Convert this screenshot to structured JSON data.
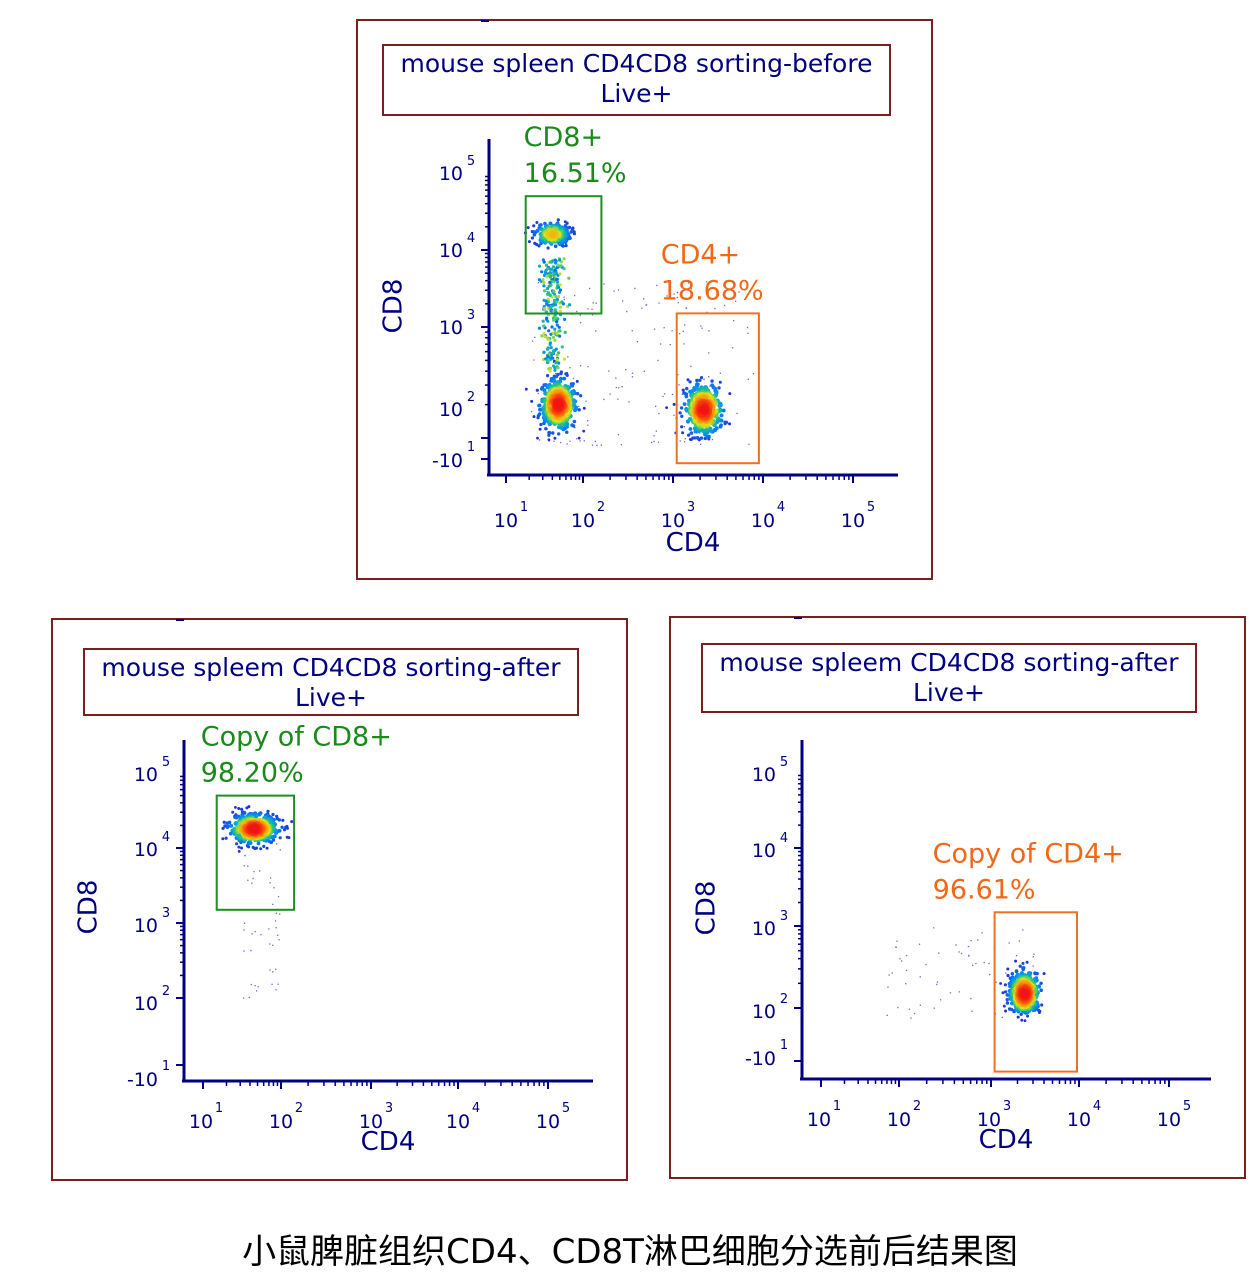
{
  "caption": "小鼠脾脏组织CD4、CD8T淋巴细胞分选前后结果图",
  "colors": {
    "frame": "#7a1f1f",
    "axis": "#000080",
    "cd8_gate": "#228b22",
    "cd8_text": "#1a8a1a",
    "cd4_gate": "#f07020",
    "cd4_text": "#f06818"
  },
  "tick_labels": [
    "-10",
    "10",
    "10",
    "10",
    "10",
    "10"
  ],
  "tick_exponents": [
    "1",
    "1",
    "2",
    "3",
    "4",
    "5"
  ],
  "x_tick_exponents": [
    "1",
    "2",
    "3",
    "4",
    "5"
  ],
  "chart_data": [
    {
      "type": "scatter",
      "title": "mouse spleen CD4CD8 sorting-before",
      "subtitle": "Live+",
      "xlabel": "CD4",
      "ylabel": "CD8",
      "x_scale": "biexponential",
      "y_scale": "biexponential",
      "x_ticks": [
        10,
        100,
        1000,
        10000,
        100000
      ],
      "y_ticks": [
        -10,
        10,
        100,
        1000,
        10000,
        100000
      ],
      "populations": [
        {
          "center": [
            48,
            20
          ],
          "density": "high"
        },
        {
          "center": [
            40,
            1600
          ],
          "density": "medium"
        },
        {
          "center": [
            2200,
            18
          ],
          "density": "high"
        }
      ],
      "gates": [
        {
          "name": "CD8+",
          "percent": "16.51%",
          "x_range": [
            18,
            160
          ],
          "y_range": [
            150,
            5000
          ]
        },
        {
          "name": "CD4+",
          "percent": "18.68%",
          "x_range": [
            1100,
            9000
          ],
          "y_range": [
            -14,
            150
          ]
        }
      ]
    },
    {
      "type": "scatter",
      "title": "mouse spleem CD4CD8 sorting-after",
      "subtitle": "Live+",
      "xlabel": "CD4",
      "ylabel": "CD8",
      "x_scale": "biexponential",
      "y_scale": "biexponential",
      "x_ticks": [
        10,
        100,
        1000,
        10000,
        100000
      ],
      "y_ticks": [
        -10,
        10,
        100,
        1000,
        10000,
        100000
      ],
      "populations": [
        {
          "center": [
            45,
            1800
          ],
          "density": "high"
        }
      ],
      "gates": [
        {
          "name": "Copy of CD8+",
          "percent": "98.20%",
          "x_range": [
            15,
            140
          ],
          "y_range": [
            150,
            5000
          ]
        }
      ]
    },
    {
      "type": "scatter",
      "title": "mouse spleem CD4CD8 sorting-after",
      "subtitle": "Live+",
      "xlabel": "CD4",
      "ylabel": "CD8",
      "x_scale": "biexponential",
      "y_scale": "biexponential",
      "x_ticks": [
        10,
        100,
        1000,
        10000,
        100000
      ],
      "y_ticks": [
        -10,
        10,
        100,
        1000,
        10000,
        100000
      ],
      "populations": [
        {
          "center": [
            2400,
            15
          ],
          "density": "high"
        }
      ],
      "gates": [
        {
          "name": "Copy of CD4+",
          "percent": "96.61%",
          "x_range": [
            1100,
            9500
          ],
          "y_range": [
            -14,
            150
          ]
        }
      ]
    }
  ]
}
